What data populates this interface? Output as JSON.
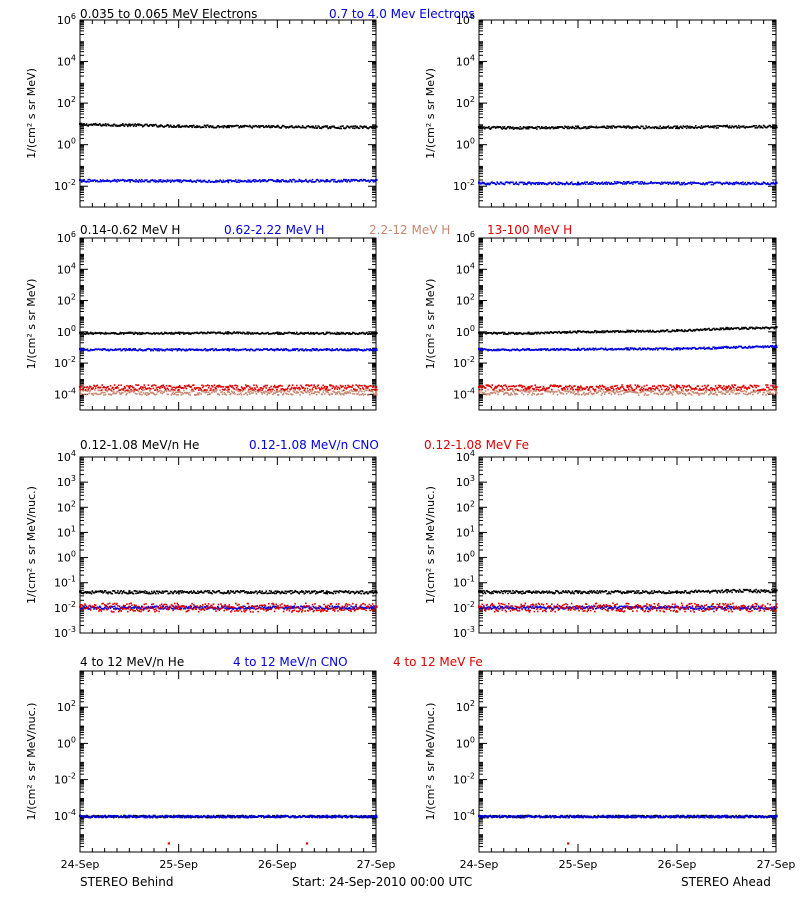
{
  "legends": [
    [
      {
        "text": "0.035 to 0.065 MeV Electrons",
        "color": "#000000"
      },
      {
        "text": "0.7 to 4.0 Mev Electrons",
        "color": "#0000dd"
      }
    ],
    [
      {
        "text": "0.14-0.62 MeV H",
        "color": "#000000"
      },
      {
        "text": "0.62-2.22 MeV H",
        "color": "#0000dd"
      },
      {
        "text": "2.2-12 MeV H",
        "color": "#c8866e"
      },
      {
        "text": "13-100 MeV H",
        "color": "#dd0000"
      }
    ],
    [
      {
        "text": "0.12-1.08 MeV/n He",
        "color": "#000000"
      },
      {
        "text": "0.12-1.08 MeV/n CNO",
        "color": "#0000dd"
      },
      {
        "text": "0.12-1.08 MeV Fe",
        "color": "#dd0000"
      }
    ],
    [
      {
        "text": "4 to 12 MeV/n He",
        "color": "#000000"
      },
      {
        "text": "4 to 12 MeV/n CNO",
        "color": "#0000dd"
      },
      {
        "text": "4 to 12 MeV Fe",
        "color": "#dd0000"
      }
    ]
  ],
  "footer": {
    "left": "STEREO Behind",
    "center": "Start: 24-Sep-2010 00:00 UTC",
    "right": "STEREO Ahead"
  },
  "chart_data": [
    {
      "type": "scatter",
      "row": 0,
      "spacecraft": "STEREO Behind",
      "ylabel": "1/(cm² s sr MeV)",
      "yscale": "log",
      "ylim": [
        0.001,
        1000000
      ],
      "yticks": [
        "10^-2",
        "10^0",
        "10^2",
        "10^4",
        "10^6"
      ],
      "xlim": [
        0,
        3
      ],
      "xticks": [
        "24-Sep",
        "25-Sep",
        "26-Sep",
        "27-Sep"
      ],
      "series": [
        {
          "name": "0.035 to 0.065 MeV Electrons",
          "color": "#000000",
          "x": [
            0,
            0.5,
            1,
            1.5,
            2,
            2.5,
            3
          ],
          "y": [
            10,
            9.5,
            8.5,
            8,
            8,
            7.5,
            7.5
          ]
        },
        {
          "name": "0.7 to 4.0 Mev Electrons",
          "color": "#0000dd",
          "x": [
            0,
            0.5,
            1,
            1.5,
            2,
            2.5,
            3
          ],
          "y": [
            0.02,
            0.02,
            0.019,
            0.019,
            0.02,
            0.02,
            0.02
          ]
        }
      ]
    },
    {
      "type": "scatter",
      "row": 0,
      "spacecraft": "STEREO Ahead",
      "ylabel": "1/(cm² s sr MeV)",
      "yscale": "log",
      "ylim": [
        0.001,
        1000000
      ],
      "yticks": [
        "10^-2",
        "10^0",
        "10^2",
        "10^4",
        "10^6"
      ],
      "xlim": [
        0,
        3
      ],
      "xticks": [
        "24-Sep",
        "25-Sep",
        "26-Sep",
        "27-Sep"
      ],
      "series": [
        {
          "name": "0.035 to 0.065 MeV Electrons",
          "color": "#000000",
          "x": [
            0,
            0.5,
            1,
            1.5,
            2,
            2.5,
            3
          ],
          "y": [
            7,
            7,
            7.5,
            7.5,
            7.5,
            8,
            8
          ]
        },
        {
          "name": "0.7 to 4.0 Mev Electrons",
          "color": "#0000dd",
          "x": [
            0,
            0.5,
            1,
            1.5,
            2,
            2.5,
            3
          ],
          "y": [
            0.015,
            0.015,
            0.015,
            0.016,
            0.015,
            0.015,
            0.015
          ]
        }
      ]
    },
    {
      "type": "scatter",
      "row": 1,
      "spacecraft": "STEREO Behind",
      "ylabel": "1/(cm² s sr MeV)",
      "yscale": "log",
      "ylim": [
        1e-05,
        1000000
      ],
      "yticks": [
        "10^-4",
        "10^-2",
        "10^0",
        "10^2",
        "10^4",
        "10^6"
      ],
      "xlim": [
        0,
        3
      ],
      "xticks": [
        "24-Sep",
        "25-Sep",
        "26-Sep",
        "27-Sep"
      ],
      "series": [
        {
          "name": "0.14-0.62 MeV H",
          "color": "#000000",
          "x": [
            0,
            0.5,
            1,
            1.5,
            2,
            2.5,
            3
          ],
          "y": [
            0.9,
            0.9,
            0.9,
            0.95,
            0.9,
            0.9,
            0.9
          ]
        },
        {
          "name": "0.62-2.22 MeV H",
          "color": "#0000dd",
          "x": [
            0,
            0.5,
            1,
            1.5,
            2,
            2.5,
            3
          ],
          "y": [
            0.08,
            0.08,
            0.08,
            0.08,
            0.08,
            0.08,
            0.08
          ]
        },
        {
          "name": "2.2-12 MeV H",
          "color": "#c8866e",
          "x": [
            0,
            0.5,
            1,
            1.5,
            2,
            2.5,
            3
          ],
          "y": [
            0.00015,
            0.00015,
            0.00015,
            0.00015,
            0.00015,
            0.00015,
            0.00015
          ]
        },
        {
          "name": "13-100 MeV H",
          "color": "#dd0000",
          "x": [
            0,
            0.5,
            1,
            1.5,
            2,
            2.5,
            3
          ],
          "y": [
            0.0003,
            0.0003,
            0.0003,
            0.0003,
            0.0003,
            0.0003,
            0.0003
          ]
        }
      ]
    },
    {
      "type": "scatter",
      "row": 1,
      "spacecraft": "STEREO Ahead",
      "ylabel": "1/(cm² s sr MeV)",
      "yscale": "log",
      "ylim": [
        1e-05,
        1000000
      ],
      "yticks": [
        "10^-4",
        "10^-2",
        "10^0",
        "10^2",
        "10^4",
        "10^6"
      ],
      "xlim": [
        0,
        3
      ],
      "xticks": [
        "24-Sep",
        "25-Sep",
        "26-Sep",
        "27-Sep"
      ],
      "series": [
        {
          "name": "0.14-0.62 MeV H",
          "color": "#000000",
          "x": [
            0,
            0.5,
            1,
            1.5,
            2,
            2.5,
            3
          ],
          "y": [
            0.9,
            0.9,
            1.1,
            1.2,
            1.3,
            1.8,
            2
          ]
        },
        {
          "name": "0.62-2.22 MeV H",
          "color": "#0000dd",
          "x": [
            0,
            0.5,
            1,
            1.5,
            2,
            2.5,
            3
          ],
          "y": [
            0.08,
            0.08,
            0.085,
            0.09,
            0.09,
            0.11,
            0.13
          ]
        },
        {
          "name": "2.2-12 MeV H",
          "color": "#c8866e",
          "x": [
            0,
            0.5,
            1,
            1.5,
            2,
            2.5,
            3
          ],
          "y": [
            0.00015,
            0.00015,
            0.00015,
            0.00015,
            0.00015,
            0.00015,
            0.00015
          ]
        },
        {
          "name": "13-100 MeV H",
          "color": "#dd0000",
          "x": [
            0,
            0.5,
            1,
            1.5,
            2,
            2.5,
            3
          ],
          "y": [
            0.0003,
            0.0003,
            0.0003,
            0.0003,
            0.0003,
            0.0003,
            0.0003
          ]
        }
      ]
    },
    {
      "type": "scatter",
      "row": 2,
      "spacecraft": "STEREO Behind",
      "ylabel": "1/(cm² s sr MeV/nuc.)",
      "yscale": "log",
      "ylim": [
        0.001,
        10000
      ],
      "yticks": [
        "10^-3",
        "10^-2",
        "10^-1",
        "10^0",
        "10^1",
        "10^2",
        "10^3",
        "10^4"
      ],
      "xlim": [
        0,
        3
      ],
      "xticks": [
        "24-Sep",
        "25-Sep",
        "26-Sep",
        "27-Sep"
      ],
      "series": [
        {
          "name": "0.12-1.08 MeV/n He",
          "color": "#000000",
          "x": [
            0,
            0.5,
            1,
            1.5,
            2,
            2.5,
            3
          ],
          "y": [
            0.045,
            0.045,
            0.045,
            0.045,
            0.045,
            0.045,
            0.045
          ]
        },
        {
          "name": "0.12-1.08 MeV/n CNO",
          "color": "#0000dd",
          "x": [
            0,
            0.5,
            1,
            1.5,
            2,
            2.5,
            3
          ],
          "y": [
            0.011,
            0.011,
            0.011,
            0.011,
            0.011,
            0.011,
            0.011
          ]
        },
        {
          "name": "0.12-1.08 MeV Fe",
          "color": "#dd0000",
          "x": [
            0,
            0.5,
            1,
            1.5,
            2,
            2.5,
            3
          ],
          "y": [
            0.011,
            0.011,
            0.011,
            0.011,
            0.011,
            0.011,
            0.011
          ]
        }
      ]
    },
    {
      "type": "scatter",
      "row": 2,
      "spacecraft": "STEREO Ahead",
      "ylabel": "1/(cm² s sr MeV/nuc.)",
      "yscale": "log",
      "ylim": [
        0.001,
        10000
      ],
      "yticks": [
        "10^-3",
        "10^-2",
        "10^-1",
        "10^0",
        "10^1",
        "10^2",
        "10^3",
        "10^4"
      ],
      "xlim": [
        0,
        3
      ],
      "xticks": [
        "24-Sep",
        "25-Sep",
        "26-Sep",
        "27-Sep"
      ],
      "series": [
        {
          "name": "0.12-1.08 MeV/n He",
          "color": "#000000",
          "x": [
            0,
            0.5,
            1,
            1.5,
            2,
            2.5,
            3
          ],
          "y": [
            0.045,
            0.045,
            0.045,
            0.045,
            0.045,
            0.05,
            0.05
          ]
        },
        {
          "name": "0.12-1.08 MeV/n CNO",
          "color": "#0000dd",
          "x": [
            0,
            0.5,
            1,
            1.5,
            2,
            2.5,
            3
          ],
          "y": [
            0.011,
            0.011,
            0.011,
            0.011,
            0.011,
            0.011,
            0.011
          ]
        },
        {
          "name": "0.12-1.08 MeV Fe",
          "color": "#dd0000",
          "x": [
            0,
            0.5,
            1,
            1.5,
            2,
            2.5,
            3
          ],
          "y": [
            0.011,
            0.011,
            0.011,
            0.011,
            0.011,
            0.011,
            0.011
          ]
        }
      ]
    },
    {
      "type": "scatter",
      "row": 3,
      "spacecraft": "STEREO Behind",
      "ylabel": "1/(cm² s sr MeV/nuc.)",
      "yscale": "log",
      "ylim": [
        1e-06,
        10000
      ],
      "yticks": [
        "10^-4",
        "10^-2",
        "10^0",
        "10^2"
      ],
      "xlim": [
        0,
        3
      ],
      "xticks": [
        "24-Sep",
        "25-Sep",
        "26-Sep",
        "27-Sep"
      ],
      "series": [
        {
          "name": "4 to 12 MeV/n He",
          "color": "#000000",
          "x": [
            0,
            0.5,
            1,
            1.5,
            2,
            2.5,
            3
          ],
          "y": [
            0.0001,
            0.0001,
            0.0001,
            0.0001,
            0.0001,
            0.0001,
            0.0001
          ]
        },
        {
          "name": "4 to 12 MeV/n CNO",
          "color": "#0000dd",
          "x": [
            0,
            0.5,
            1,
            1.5,
            2,
            2.5,
            3
          ],
          "y": [
            0.0001,
            0.0001,
            0.0001,
            0.0001,
            0.0001,
            0.0001,
            0.0001
          ]
        },
        {
          "name": "4 to 12 MeV Fe",
          "color": "#dd0000",
          "x": [
            0.9,
            2.3
          ],
          "y": [
            3e-06,
            3e-06
          ]
        }
      ]
    },
    {
      "type": "scatter",
      "row": 3,
      "spacecraft": "STEREO Ahead",
      "ylabel": "1/(cm² s sr MeV/nuc.)",
      "yscale": "log",
      "ylim": [
        1e-06,
        10000
      ],
      "yticks": [
        "10^-4",
        "10^-2",
        "10^0",
        "10^2"
      ],
      "xlim": [
        0,
        3
      ],
      "xticks": [
        "24-Sep",
        "25-Sep",
        "26-Sep",
        "27-Sep"
      ],
      "series": [
        {
          "name": "4 to 12 MeV/n He",
          "color": "#000000",
          "x": [
            0,
            0.5,
            1,
            1.5,
            2,
            2.5,
            3
          ],
          "y": [
            0.0001,
            0.0001,
            0.0001,
            0.0001,
            0.0001,
            0.0001,
            0.0001
          ]
        },
        {
          "name": "4 to 12 MeV/n CNO",
          "color": "#0000dd",
          "x": [
            0,
            0.5,
            1,
            1.5,
            2,
            2.5,
            3
          ],
          "y": [
            0.0001,
            0.0001,
            0.0001,
            0.0001,
            0.0001,
            0.0001,
            0.0001
          ]
        },
        {
          "name": "4 to 12 MeV Fe",
          "color": "#dd0000",
          "x": [
            0.9
          ],
          "y": [
            3e-06
          ]
        }
      ]
    }
  ]
}
